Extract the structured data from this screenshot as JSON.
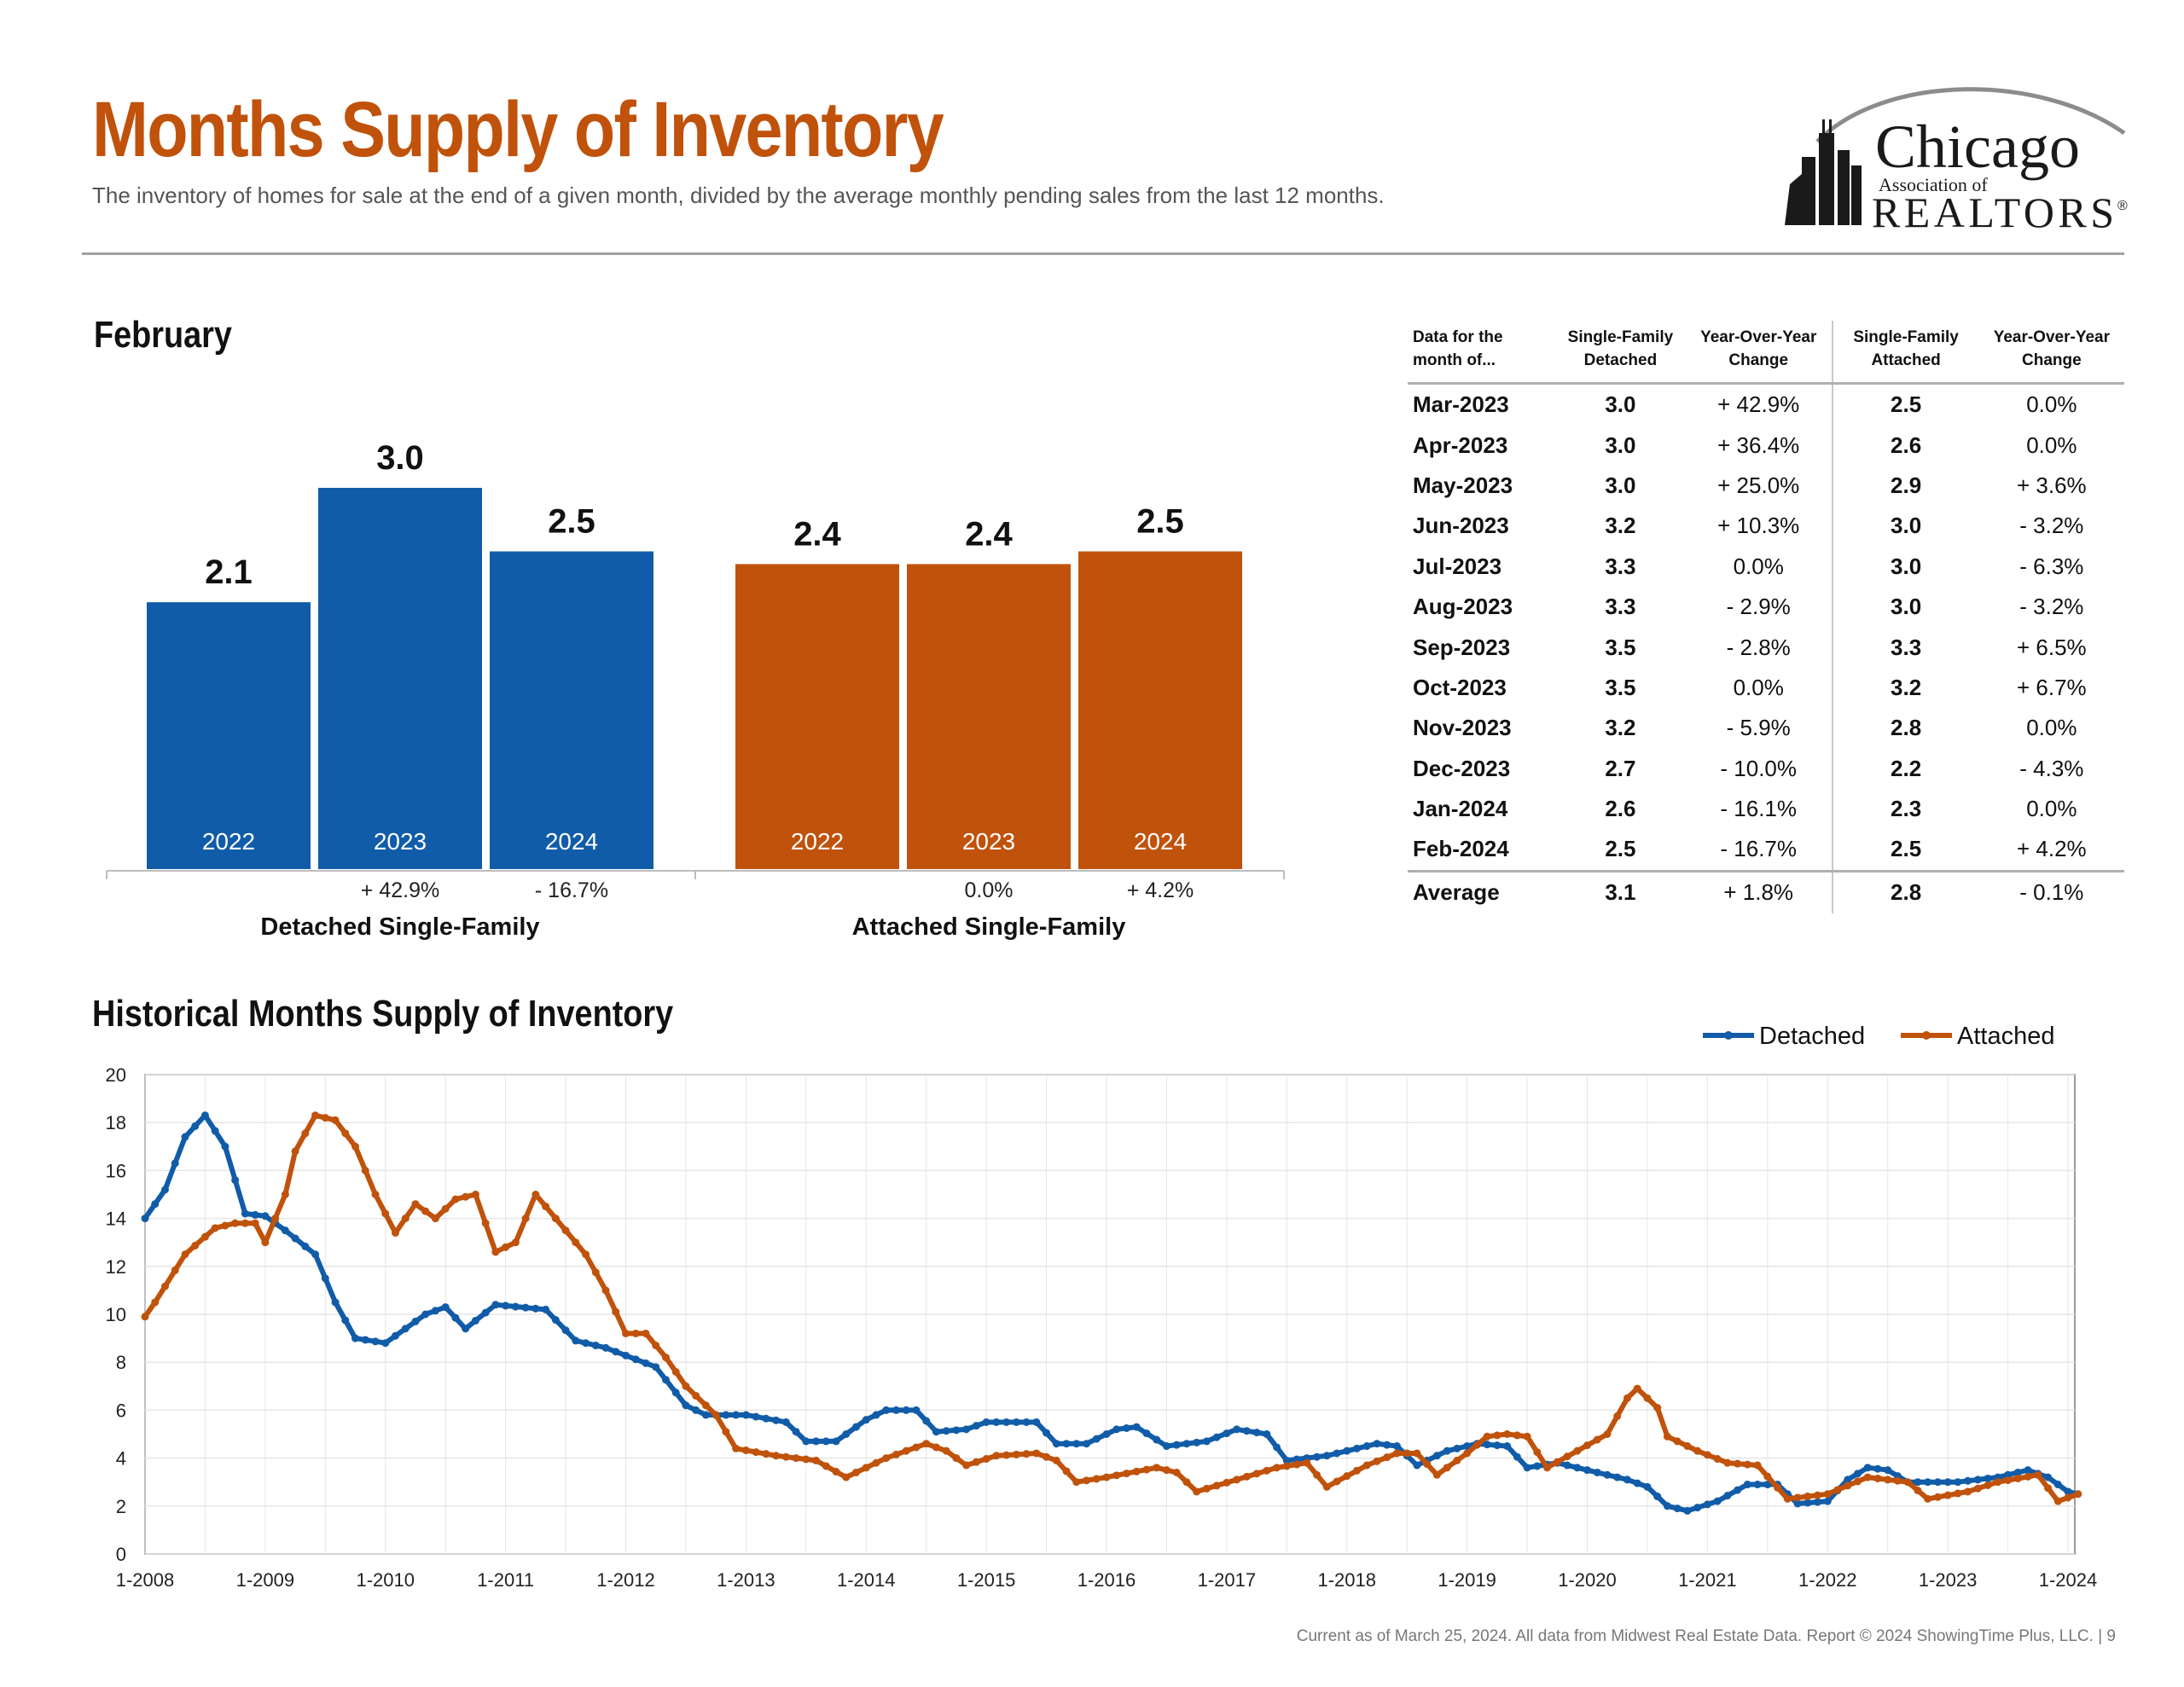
{
  "header": {
    "title": "Months Supply of Inventory",
    "subtitle": "The inventory of homes for sale at the end of a given month, divided by the average monthly pending sales from the last 12 months."
  },
  "logo": {
    "line1": "Chicago",
    "line2": "Association of",
    "line3": "REALTORS",
    "mark": "®"
  },
  "month_heading": "February",
  "historical_heading": "Historical Months Supply of Inventory",
  "table": {
    "headers": [
      "Data for the month of...",
      "Single-Family Detached",
      "Year-Over-Year Change",
      "Single-Family Attached",
      "Year-Over-Year Change"
    ],
    "rows": [
      {
        "month": "Mar-2023",
        "detached": "3.0",
        "detached_change": "+ 42.9%",
        "attached": "2.5",
        "attached_change": "0.0%"
      },
      {
        "month": "Apr-2023",
        "detached": "3.0",
        "detached_change": "+ 36.4%",
        "attached": "2.6",
        "attached_change": "0.0%"
      },
      {
        "month": "May-2023",
        "detached": "3.0",
        "detached_change": "+ 25.0%",
        "attached": "2.9",
        "attached_change": "+ 3.6%"
      },
      {
        "month": "Jun-2023",
        "detached": "3.2",
        "detached_change": "+ 10.3%",
        "attached": "3.0",
        "attached_change": "- 3.2%"
      },
      {
        "month": "Jul-2023",
        "detached": "3.3",
        "detached_change": "0.0%",
        "attached": "3.0",
        "attached_change": "- 6.3%"
      },
      {
        "month": "Aug-2023",
        "detached": "3.3",
        "detached_change": "- 2.9%",
        "attached": "3.0",
        "attached_change": "- 3.2%"
      },
      {
        "month": "Sep-2023",
        "detached": "3.5",
        "detached_change": "- 2.8%",
        "attached": "3.3",
        "attached_change": "+ 6.5%"
      },
      {
        "month": "Oct-2023",
        "detached": "3.5",
        "detached_change": "0.0%",
        "attached": "3.2",
        "attached_change": "+ 6.7%"
      },
      {
        "month": "Nov-2023",
        "detached": "3.2",
        "detached_change": "- 5.9%",
        "attached": "2.8",
        "attached_change": "0.0%"
      },
      {
        "month": "Dec-2023",
        "detached": "2.7",
        "detached_change": "- 10.0%",
        "attached": "2.2",
        "attached_change": "- 4.3%"
      },
      {
        "month": "Jan-2024",
        "detached": "2.6",
        "detached_change": "- 16.1%",
        "attached": "2.3",
        "attached_change": "0.0%"
      },
      {
        "month": "Feb-2024",
        "detached": "2.5",
        "detached_change": "- 16.7%",
        "attached": "2.5",
        "attached_change": "+ 4.2%"
      }
    ],
    "average": {
      "month": "Average",
      "detached": "3.1",
      "detached_change": "+ 1.8%",
      "attached": "2.8",
      "attached_change": "- 0.1%"
    }
  },
  "footer": "Current as of March 25, 2024.  All data from Midwest Real Estate Data. Report © 2024 ShowingTime Plus, LLC.  |  9",
  "chart_data": [
    {
      "type": "bar",
      "groups": [
        {
          "name": "Detached Single-Family",
          "color": "#115ca8",
          "bars": [
            {
              "year": "2022",
              "value": 2.1,
              "change": ""
            },
            {
              "year": "2023",
              "value": 3.0,
              "change": "+ 42.9%"
            },
            {
              "year": "2024",
              "value": 2.5,
              "change": "- 16.7%"
            }
          ]
        },
        {
          "name": "Attached Single-Family",
          "color": "#c0520b",
          "bars": [
            {
              "year": "2022",
              "value": 2.4,
              "change": ""
            },
            {
              "year": "2023",
              "value": 2.4,
              "change": "0.0%"
            },
            {
              "year": "2024",
              "value": 2.5,
              "change": "+ 4.2%"
            }
          ]
        }
      ]
    },
    {
      "type": "line",
      "x_start": "2008-01",
      "x_ticks": [
        "1-2008",
        "1-2009",
        "1-2010",
        "1-2011",
        "1-2012",
        "1-2013",
        "1-2014",
        "1-2015",
        "1-2016",
        "1-2017",
        "1-2018",
        "1-2019",
        "1-2020",
        "1-2021",
        "1-2022",
        "1-2023",
        "1-2024"
      ],
      "y_ticks": [
        0,
        2,
        4,
        6,
        8,
        10,
        12,
        14,
        16,
        18,
        20
      ],
      "ylim": [
        0,
        20
      ],
      "grid": true,
      "legend": "top-right",
      "series": [
        {
          "name": "Detached",
          "color": "#115ca8",
          "keypoints": [
            [
              "2008-01",
              14.0
            ],
            [
              "2008-03",
              15.2
            ],
            [
              "2008-05",
              17.4
            ],
            [
              "2008-07",
              18.3
            ],
            [
              "2008-09",
              17.0
            ],
            [
              "2008-11",
              14.2
            ],
            [
              "2009-01",
              14.1
            ],
            [
              "2009-03",
              13.5
            ],
            [
              "2009-06",
              12.5
            ],
            [
              "2009-08",
              10.5
            ],
            [
              "2009-10",
              9.0
            ],
            [
              "2010-01",
              8.8
            ],
            [
              "2010-05",
              10.0
            ],
            [
              "2010-07",
              10.3
            ],
            [
              "2010-09",
              9.4
            ],
            [
              "2010-12",
              10.4
            ],
            [
              "2011-05",
              10.2
            ],
            [
              "2011-08",
              8.9
            ],
            [
              "2011-11",
              8.6
            ],
            [
              "2012-04",
              7.8
            ],
            [
              "2012-07",
              6.2
            ],
            [
              "2012-09",
              5.8
            ],
            [
              "2013-01",
              5.8
            ],
            [
              "2013-05",
              5.5
            ],
            [
              "2013-07",
              4.7
            ],
            [
              "2013-10",
              4.7
            ],
            [
              "2014-01",
              5.6
            ],
            [
              "2014-03",
              6.0
            ],
            [
              "2014-06",
              6.0
            ],
            [
              "2014-08",
              5.1
            ],
            [
              "2014-11",
              5.2
            ],
            [
              "2015-01",
              5.5
            ],
            [
              "2015-06",
              5.5
            ],
            [
              "2015-08",
              4.6
            ],
            [
              "2015-11",
              4.6
            ],
            [
              "2016-02",
              5.2
            ],
            [
              "2016-04",
              5.3
            ],
            [
              "2016-07",
              4.5
            ],
            [
              "2016-11",
              4.7
            ],
            [
              "2017-02",
              5.2
            ],
            [
              "2017-05",
              5.0
            ],
            [
              "2017-07",
              3.9
            ],
            [
              "2017-11",
              4.1
            ],
            [
              "2018-04",
              4.6
            ],
            [
              "2018-06",
              4.5
            ],
            [
              "2018-08",
              3.7
            ],
            [
              "2018-11",
              4.3
            ],
            [
              "2019-02",
              4.6
            ],
            [
              "2019-05",
              4.5
            ],
            [
              "2019-07",
              3.6
            ],
            [
              "2019-10",
              3.8
            ],
            [
              "2020-01",
              3.5
            ],
            [
              "2020-05",
              3.1
            ],
            [
              "2020-07",
              2.8
            ],
            [
              "2020-09",
              2.0
            ],
            [
              "2020-11",
              1.8
            ],
            [
              "2021-02",
              2.2
            ],
            [
              "2021-05",
              2.9
            ],
            [
              "2021-08",
              2.9
            ],
            [
              "2021-10",
              2.1
            ],
            [
              "2022-01",
              2.2
            ],
            [
              "2022-03",
              3.1
            ],
            [
              "2022-05",
              3.6
            ],
            [
              "2022-07",
              3.5
            ],
            [
              "2022-09",
              3.0
            ],
            [
              "2023-02",
              3.0
            ],
            [
              "2023-06",
              3.2
            ],
            [
              "2023-09",
              3.5
            ],
            [
              "2023-11",
              3.2
            ],
            [
              "2024-01",
              2.6
            ],
            [
              "2024-02",
              2.5
            ]
          ]
        },
        {
          "name": "Attached",
          "color": "#c0520b",
          "keypoints": [
            [
              "2008-01",
              9.9
            ],
            [
              "2008-02",
              10.5
            ],
            [
              "2008-05",
              12.5
            ],
            [
              "2008-08",
              13.6
            ],
            [
              "2008-10",
              13.8
            ],
            [
              "2008-12",
              13.8
            ],
            [
              "2009-01",
              13.0
            ],
            [
              "2009-03",
              15.0
            ],
            [
              "2009-04",
              16.8
            ],
            [
              "2009-06",
              18.3
            ],
            [
              "2009-08",
              18.1
            ],
            [
              "2009-10",
              17.0
            ],
            [
              "2009-12",
              15.0
            ],
            [
              "2010-02",
              13.4
            ],
            [
              "2010-04",
              14.6
            ],
            [
              "2010-06",
              14.0
            ],
            [
              "2010-08",
              14.8
            ],
            [
              "2010-10",
              15.0
            ],
            [
              "2010-12",
              12.6
            ],
            [
              "2011-02",
              13.0
            ],
            [
              "2011-04",
              15.0
            ],
            [
              "2011-06",
              14.0
            ],
            [
              "2011-09",
              12.5
            ],
            [
              "2011-11",
              11.0
            ],
            [
              "2012-01",
              9.2
            ],
            [
              "2012-03",
              9.2
            ],
            [
              "2012-05",
              8.2
            ],
            [
              "2012-07",
              7.0
            ],
            [
              "2012-10",
              5.8
            ],
            [
              "2012-12",
              4.4
            ],
            [
              "2013-04",
              4.1
            ],
            [
              "2013-08",
              3.9
            ],
            [
              "2013-11",
              3.2
            ],
            [
              "2014-03",
              4.0
            ],
            [
              "2014-07",
              4.6
            ],
            [
              "2014-09",
              4.3
            ],
            [
              "2014-11",
              3.7
            ],
            [
              "2015-02",
              4.1
            ],
            [
              "2015-06",
              4.2
            ],
            [
              "2015-08",
              3.9
            ],
            [
              "2015-10",
              3.0
            ],
            [
              "2016-01",
              3.2
            ],
            [
              "2016-06",
              3.6
            ],
            [
              "2016-08",
              3.4
            ],
            [
              "2016-10",
              2.6
            ],
            [
              "2017-02",
              3.1
            ],
            [
              "2017-06",
              3.6
            ],
            [
              "2017-09",
              3.8
            ],
            [
              "2017-11",
              2.8
            ],
            [
              "2018-03",
              3.7
            ],
            [
              "2018-06",
              4.2
            ],
            [
              "2018-08",
              4.2
            ],
            [
              "2018-10",
              3.3
            ],
            [
              "2019-01",
              4.2
            ],
            [
              "2019-03",
              4.9
            ],
            [
              "2019-05",
              5.0
            ],
            [
              "2019-07",
              4.9
            ],
            [
              "2019-09",
              3.6
            ],
            [
              "2019-12",
              4.3
            ],
            [
              "2020-03",
              5.0
            ],
            [
              "2020-05",
              6.5
            ],
            [
              "2020-06",
              6.9
            ],
            [
              "2020-08",
              6.1
            ],
            [
              "2020-09",
              4.9
            ],
            [
              "2020-12",
              4.3
            ],
            [
              "2021-03",
              3.8
            ],
            [
              "2021-06",
              3.7
            ],
            [
              "2021-09",
              2.3
            ],
            [
              "2022-01",
              2.5
            ],
            [
              "2022-05",
              3.2
            ],
            [
              "2022-09",
              3.0
            ],
            [
              "2022-11",
              2.3
            ],
            [
              "2023-03",
              2.6
            ],
            [
              "2023-06",
              3.0
            ],
            [
              "2023-10",
              3.3
            ],
            [
              "2023-12",
              2.2
            ],
            [
              "2024-02",
              2.5
            ]
          ]
        }
      ]
    }
  ]
}
